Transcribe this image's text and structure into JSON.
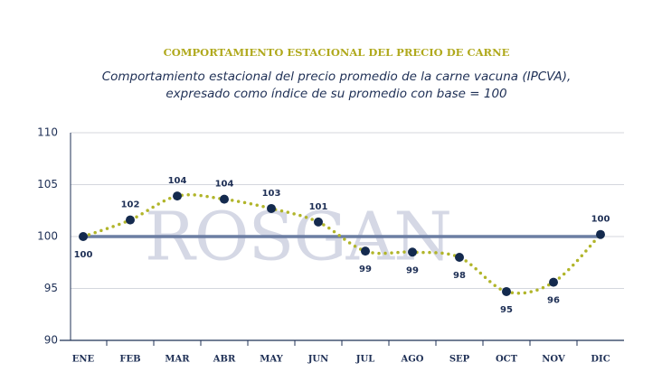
{
  "chart_data": {
    "type": "line",
    "title": "COMPORTAMIENTO ESTACIONAL DEL PRECIO DE CARNE",
    "subtitle": "Comportamiento estacional del precio promedio de la carne vacuna (IPCVA),",
    "subtitle_line2": "expresado como índice de su promedio con base = 100",
    "watermark": "ROSGAN",
    "categories": [
      "ENE",
      "FEB",
      "MAR",
      "ABR",
      "MAY",
      "JUN",
      "JUL",
      "AGO",
      "SEP",
      "OCT",
      "NOV",
      "DIC"
    ],
    "values": [
      100,
      101.6,
      103.9,
      103.6,
      102.7,
      101.4,
      98.6,
      98.5,
      98.0,
      94.7,
      95.6,
      100.2
    ],
    "value_labels": [
      "100",
      "102",
      "104",
      "104",
      "103",
      "101",
      "99",
      "99",
      "98",
      "95",
      "96",
      "100"
    ],
    "line_color": "#b1b52a",
    "marker_color": "#142a4e",
    "reference_line": 100,
    "reference_color": "#6c7ea3",
    "ylim": [
      90,
      110
    ],
    "yticks": [
      90,
      95,
      100,
      105,
      110
    ],
    "grid": true
  }
}
